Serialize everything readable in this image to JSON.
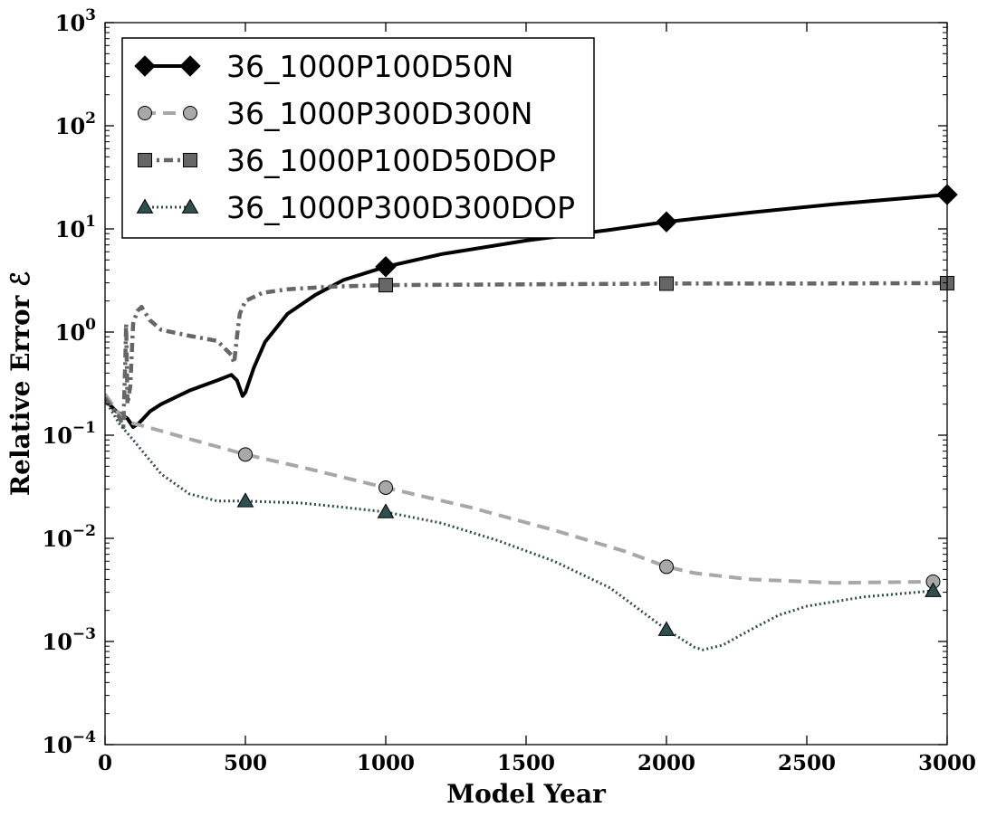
{
  "chart_data": {
    "type": "line",
    "title": "",
    "xlabel": "Model Year",
    "ylabel": "Relative Error ℰ",
    "xlim": [
      0,
      3000
    ],
    "ylim": [
      0.0001,
      1000
    ],
    "yscale": "log",
    "grid": false,
    "legend_position": "top-left",
    "x_ticks": [
      {
        "value": 0,
        "label": "0"
      },
      {
        "value": 500,
        "label": "500"
      },
      {
        "value": 1000,
        "label": "1000"
      },
      {
        "value": 1500,
        "label": "1500"
      },
      {
        "value": 2000,
        "label": "2000"
      },
      {
        "value": 2500,
        "label": "2500"
      },
      {
        "value": 3000,
        "label": "3000"
      }
    ],
    "y_ticks": [
      {
        "value": 0.0001,
        "base": "10",
        "exp": "−4"
      },
      {
        "value": 0.001,
        "base": "10",
        "exp": "−3"
      },
      {
        "value": 0.01,
        "base": "10",
        "exp": "−2"
      },
      {
        "value": 0.1,
        "base": "10",
        "exp": "−1"
      },
      {
        "value": 1,
        "base": "10",
        "exp": "0"
      },
      {
        "value": 10,
        "base": "10",
        "exp": "1"
      },
      {
        "value": 100,
        "base": "10",
        "exp": "2"
      },
      {
        "value": 1000,
        "base": "10",
        "exp": "3"
      }
    ],
    "series": [
      {
        "name": "36_1000P100D50N",
        "color": "#000000",
        "marker": "diamond",
        "dash": "solid",
        "points": [
          [
            0,
            0.22
          ],
          [
            40,
            0.17
          ],
          [
            80,
            0.145
          ],
          [
            100,
            0.12
          ],
          [
            120,
            0.13
          ],
          [
            160,
            0.17
          ],
          [
            200,
            0.2
          ],
          [
            300,
            0.27
          ],
          [
            400,
            0.34
          ],
          [
            450,
            0.385
          ],
          [
            470,
            0.34
          ],
          [
            490,
            0.24
          ],
          [
            500,
            0.26
          ],
          [
            530,
            0.45
          ],
          [
            570,
            0.8
          ],
          [
            650,
            1.5
          ],
          [
            750,
            2.3
          ],
          [
            850,
            3.2
          ],
          [
            1000,
            4.3
          ],
          [
            1200,
            5.7
          ],
          [
            1500,
            7.7
          ],
          [
            1800,
            9.8
          ],
          [
            2000,
            11.7
          ],
          [
            2300,
            14.4
          ],
          [
            2600,
            17.4
          ],
          [
            3000,
            21.5
          ]
        ],
        "markers": [
          [
            1000,
            4.3
          ],
          [
            2000,
            11.7
          ],
          [
            3000,
            21.5
          ]
        ]
      },
      {
        "name": "36_1000P300D300N",
        "color": "#a8a8a8",
        "marker": "circle",
        "dash": "dashed",
        "points": [
          [
            0,
            0.25
          ],
          [
            50,
            0.16
          ],
          [
            100,
            0.13
          ],
          [
            150,
            0.12
          ],
          [
            300,
            0.092
          ],
          [
            500,
            0.065
          ],
          [
            700,
            0.049
          ],
          [
            1000,
            0.031
          ],
          [
            1300,
            0.02
          ],
          [
            1600,
            0.012
          ],
          [
            1850,
            0.0075
          ],
          [
            2000,
            0.0053
          ],
          [
            2100,
            0.0046
          ],
          [
            2300,
            0.004
          ],
          [
            2600,
            0.0037
          ],
          [
            2950,
            0.0038
          ]
        ],
        "markers": [
          [
            500,
            0.065
          ],
          [
            1000,
            0.031
          ],
          [
            2000,
            0.0053
          ],
          [
            2950,
            0.0038
          ]
        ]
      },
      {
        "name": "36_1000P100D50DOP",
        "color": "#666666",
        "marker": "square",
        "dash": "dashdot",
        "points": [
          [
            0,
            0.23
          ],
          [
            50,
            0.15
          ],
          [
            65,
            0.12
          ],
          [
            72,
            0.5
          ],
          [
            75,
            1.2
          ],
          [
            80,
            0.2
          ],
          [
            90,
            0.3
          ],
          [
            100,
            1.2
          ],
          [
            115,
            1.6
          ],
          [
            130,
            1.75
          ],
          [
            160,
            1.3
          ],
          [
            200,
            1.05
          ],
          [
            300,
            0.92
          ],
          [
            400,
            0.82
          ],
          [
            450,
            0.6
          ],
          [
            460,
            0.5
          ],
          [
            470,
            0.9
          ],
          [
            480,
            1.5
          ],
          [
            500,
            2.0
          ],
          [
            560,
            2.4
          ],
          [
            650,
            2.6
          ],
          [
            800,
            2.75
          ],
          [
            1000,
            2.85
          ],
          [
            1500,
            2.9
          ],
          [
            2000,
            2.95
          ],
          [
            2500,
            2.95
          ],
          [
            3000,
            2.98
          ]
        ],
        "markers": [
          [
            1000,
            2.85
          ],
          [
            2000,
            2.95
          ],
          [
            3000,
            2.98
          ]
        ]
      },
      {
        "name": "36_1000P300D300DOP",
        "color": "#2f4f4f",
        "marker": "triangle",
        "dash": "dotted",
        "points": [
          [
            0,
            0.22
          ],
          [
            50,
            0.13
          ],
          [
            100,
            0.09
          ],
          [
            200,
            0.042
          ],
          [
            300,
            0.027
          ],
          [
            400,
            0.023
          ],
          [
            500,
            0.023
          ],
          [
            700,
            0.022
          ],
          [
            850,
            0.02
          ],
          [
            1000,
            0.018
          ],
          [
            1200,
            0.014
          ],
          [
            1400,
            0.0095
          ],
          [
            1600,
            0.006
          ],
          [
            1800,
            0.0033
          ],
          [
            2000,
            0.0013
          ],
          [
            2100,
            0.00088
          ],
          [
            2130,
            0.00083
          ],
          [
            2200,
            0.00092
          ],
          [
            2300,
            0.0013
          ],
          [
            2400,
            0.0018
          ],
          [
            2500,
            0.0022
          ],
          [
            2700,
            0.0027
          ],
          [
            2950,
            0.0031
          ]
        ],
        "markers": [
          [
            500,
            0.023
          ],
          [
            1000,
            0.018
          ],
          [
            2000,
            0.0013
          ],
          [
            2950,
            0.0031
          ]
        ]
      }
    ]
  }
}
